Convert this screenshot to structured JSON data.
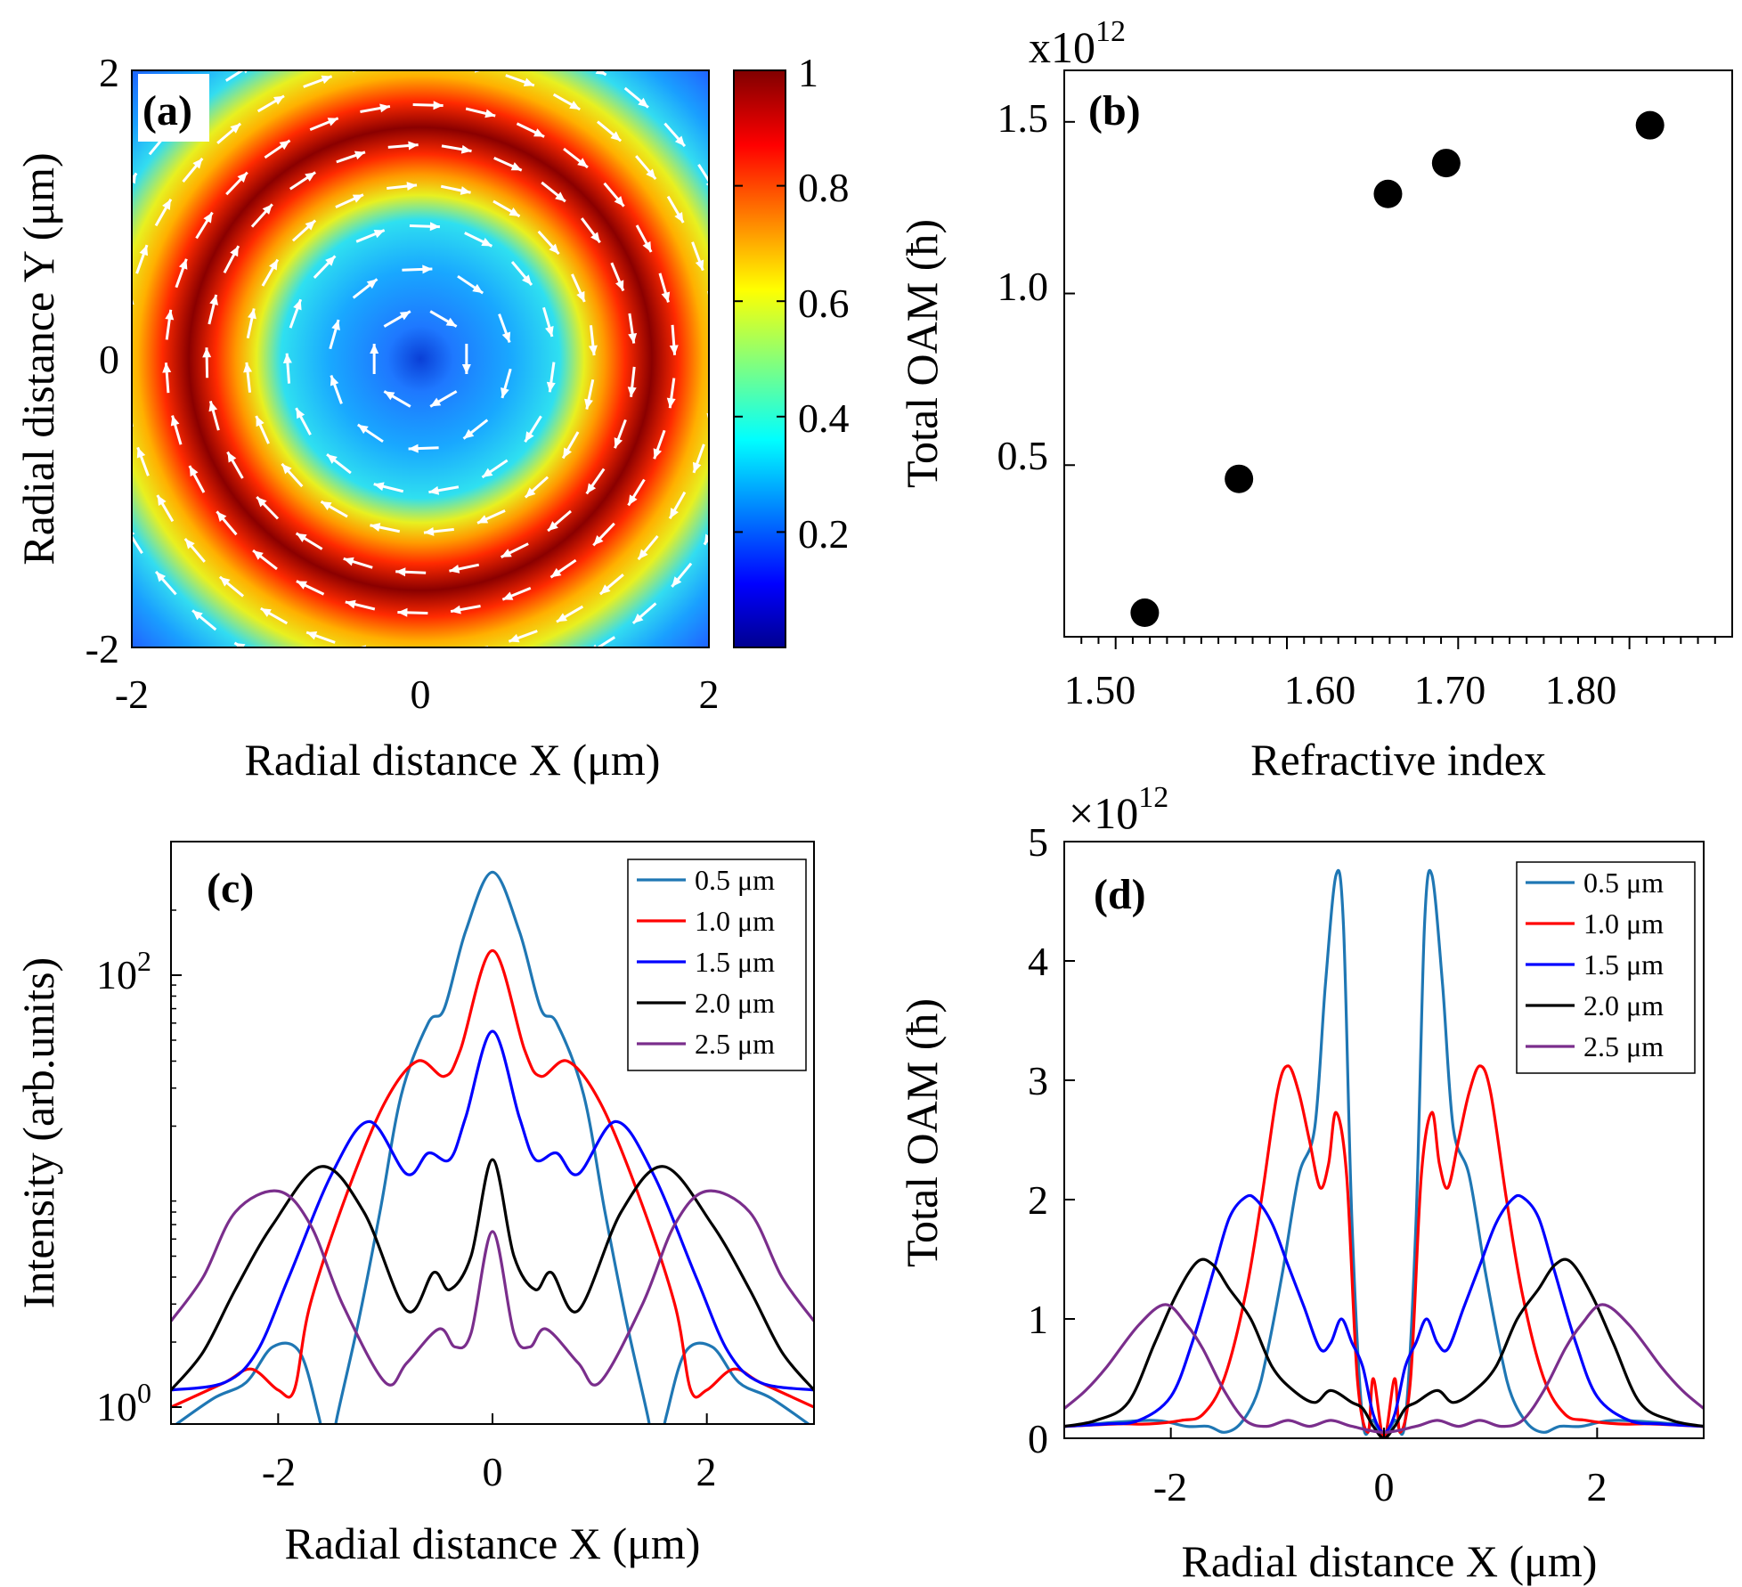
{
  "chart_data": [
    {
      "panel": "(a)",
      "type": "heatmap",
      "title": "",
      "xlabel": "Radial distance X (μm)",
      "ylabel": "Radial distance Y (μm)",
      "xlim": [
        -2,
        2
      ],
      "ylim": [
        -2,
        2
      ],
      "xticks": [
        "-2",
        "0",
        "2"
      ],
      "yticks": [
        "-2",
        "0",
        "2"
      ],
      "colorbar": {
        "range": [
          0,
          1
        ],
        "ticks": [
          "0.2",
          "0.4",
          "0.6",
          "0.8",
          "1"
        ],
        "colormap": "jet"
      },
      "field_description": "normalized intensity ring peaking at r ≈ 1.5 μm, white arrows show circulating azimuthal flow",
      "ring_peak_radius": 1.5
    },
    {
      "panel": "(b)",
      "type": "scatter",
      "xlabel": "Refractive index",
      "ylabel": "Total OAM (ħ)",
      "exponent": "x10",
      "exponent_power": "12",
      "xlim": [
        1.47,
        1.86
      ],
      "ylim": [
        0.0,
        1.65
      ],
      "xticks": [
        "1.50",
        "1.60",
        "1.70",
        "1.80"
      ],
      "yticks": [
        "0.5",
        "1.0",
        "1.5"
      ],
      "x": [
        1.517,
        1.572,
        1.659,
        1.693,
        1.812
      ],
      "y": [
        0.07,
        0.46,
        1.29,
        1.38,
        1.49
      ],
      "marker_color": "#000000"
    },
    {
      "panel": "(c)",
      "type": "line",
      "yscale": "log",
      "xlabel": "Radial distance X (μm)",
      "ylabel": "Intensity (arb.units)",
      "xlim": [
        -3,
        3
      ],
      "xticks": [
        "-2",
        "0",
        "2"
      ],
      "yticks_base": [
        "10",
        "10"
      ],
      "yticks_exp": [
        "0",
        "2"
      ],
      "legend": [
        "0.5 μm",
        "1.0 μm",
        "1.5 μm",
        "2.0 μm",
        "2.5 μm"
      ],
      "legend_loc": "top-right",
      "series": [
        {
          "name": "0.5 μm",
          "color": "#1f77b4",
          "x": [
            0,
            0.25,
            0.45,
            0.6,
            0.85,
            1.05,
            1.25,
            1.45,
            1.53,
            1.62,
            1.8,
            2.05,
            2.3,
            2.6,
            3.0
          ],
          "y": [
            300,
            160,
            70,
            60,
            28,
            8,
            2.5,
            0.9,
            0.55,
            0.9,
            1.8,
            1.9,
            1.3,
            1.1,
            0.8
          ]
        },
        {
          "name": "1.0 μm",
          "color": "#ff0000",
          "x": [
            0,
            0.3,
            0.45,
            0.7,
            1.0,
            1.35,
            1.7,
            1.85,
            2.0,
            2.25,
            2.5,
            3.0
          ],
          "y": [
            130,
            45,
            34,
            40,
            26,
            10,
            3,
            1.2,
            1.2,
            1.5,
            1.3,
            1.0
          ]
        },
        {
          "name": "1.5 μm",
          "color": "#0000ff",
          "x": [
            0,
            0.25,
            0.4,
            0.6,
            0.8,
            1.15,
            1.5,
            1.9,
            2.2,
            2.5,
            3.0
          ],
          "y": [
            55,
            22,
            14,
            15,
            12,
            21,
            12,
            4,
            1.8,
            1.3,
            1.2
          ]
        },
        {
          "name": "2.0 μm",
          "color": "#000000",
          "x": [
            0,
            0.2,
            0.4,
            0.55,
            0.8,
            1.2,
            1.6,
            2.05,
            2.4,
            2.7,
            3.0
          ],
          "y": [
            14,
            5,
            3.5,
            4.2,
            2.8,
            8,
            13,
            7,
            3.5,
            1.8,
            1.2
          ]
        },
        {
          "name": "2.5 μm",
          "color": "#7a2e8c",
          "x": [
            0,
            0.2,
            0.35,
            0.5,
            0.8,
            1.0,
            1.4,
            1.7,
            2.0,
            2.4,
            2.7,
            3.0
          ],
          "y": [
            6.5,
            2.2,
            1.9,
            2.3,
            1.6,
            1.3,
            3,
            7,
            10,
            8,
            4,
            2.5
          ]
        }
      ]
    },
    {
      "panel": "(d)",
      "type": "line",
      "xlabel": "Radial distance X (μm)",
      "ylabel": "Total OAM (ħ)",
      "exponent": "×10",
      "exponent_power": "12",
      "xlim": [
        -3,
        3
      ],
      "ylim": [
        0,
        5
      ],
      "xticks": [
        "-2",
        "0",
        "2"
      ],
      "yticks": [
        "0",
        "1",
        "2",
        "3",
        "4",
        "5"
      ],
      "legend": [
        "0.5 μm",
        "1.0 μm",
        "1.5 μm",
        "2.0 μm",
        "2.5 μm"
      ],
      "legend_loc": "top-right",
      "series": [
        {
          "name": "0.5 μm",
          "color": "#1f77b4",
          "x": [
            0,
            0.1,
            0.2,
            0.3,
            0.38,
            0.45,
            0.55,
            0.65,
            0.8,
            0.95,
            1.1,
            1.2,
            1.35,
            1.5,
            1.65,
            1.85,
            2.2,
            3.0
          ],
          "y": [
            0,
            0.15,
            0.15,
            1.8,
            4.3,
            4.72,
            3.8,
            2.6,
            2.2,
            1.4,
            0.7,
            0.35,
            0.12,
            0.05,
            0.1,
            0.1,
            0.15,
            0.1
          ]
        },
        {
          "name": "1.0 μm",
          "color": "#ff0000",
          "x": [
            0,
            0.1,
            0.15,
            0.25,
            0.35,
            0.45,
            0.52,
            0.6,
            0.7,
            0.8,
            0.9,
            1.0,
            1.15,
            1.3,
            1.5,
            1.7,
            1.9,
            2.2,
            2.5,
            3.0
          ],
          "y": [
            0,
            0.5,
            0.05,
            0.5,
            2.2,
            2.73,
            2.3,
            2.1,
            2.5,
            2.9,
            3.12,
            2.9,
            2.0,
            1.2,
            0.5,
            0.2,
            0.15,
            0.12,
            0.12,
            0.1
          ]
        },
        {
          "name": "1.5 μm",
          "color": "#0000ff",
          "x": [
            0,
            0.1,
            0.2,
            0.3,
            0.4,
            0.5,
            0.6,
            0.75,
            0.9,
            1.05,
            1.2,
            1.3,
            1.45,
            1.6,
            1.8,
            2.0,
            2.3,
            2.6,
            3.0
          ],
          "y": [
            0.05,
            0.2,
            0.6,
            0.8,
            1.0,
            0.8,
            0.75,
            1.1,
            1.45,
            1.8,
            2.0,
            2.02,
            1.85,
            1.4,
            0.8,
            0.35,
            0.15,
            0.12,
            0.1
          ]
        },
        {
          "name": "2.0 μm",
          "color": "#000000",
          "x": [
            0,
            0.1,
            0.2,
            0.3,
            0.5,
            0.65,
            0.85,
            1.05,
            1.25,
            1.45,
            1.6,
            1.75,
            1.95,
            2.15,
            2.4,
            2.7,
            3.0
          ],
          "y": [
            0,
            0.1,
            0.25,
            0.3,
            0.4,
            0.3,
            0.4,
            0.6,
            1.0,
            1.25,
            1.45,
            1.48,
            1.2,
            0.8,
            0.3,
            0.15,
            0.1
          ]
        },
        {
          "name": "2.5 μm",
          "color": "#7a2e8c",
          "x": [
            0,
            0.3,
            0.5,
            0.7,
            0.9,
            1.1,
            1.3,
            1.5,
            1.7,
            1.85,
            2.05,
            2.3,
            2.6,
            2.8,
            3.0
          ],
          "y": [
            0.05,
            0.1,
            0.15,
            0.1,
            0.15,
            0.1,
            0.15,
            0.4,
            0.75,
            0.95,
            1.12,
            0.95,
            0.6,
            0.4,
            0.25
          ]
        }
      ]
    }
  ]
}
